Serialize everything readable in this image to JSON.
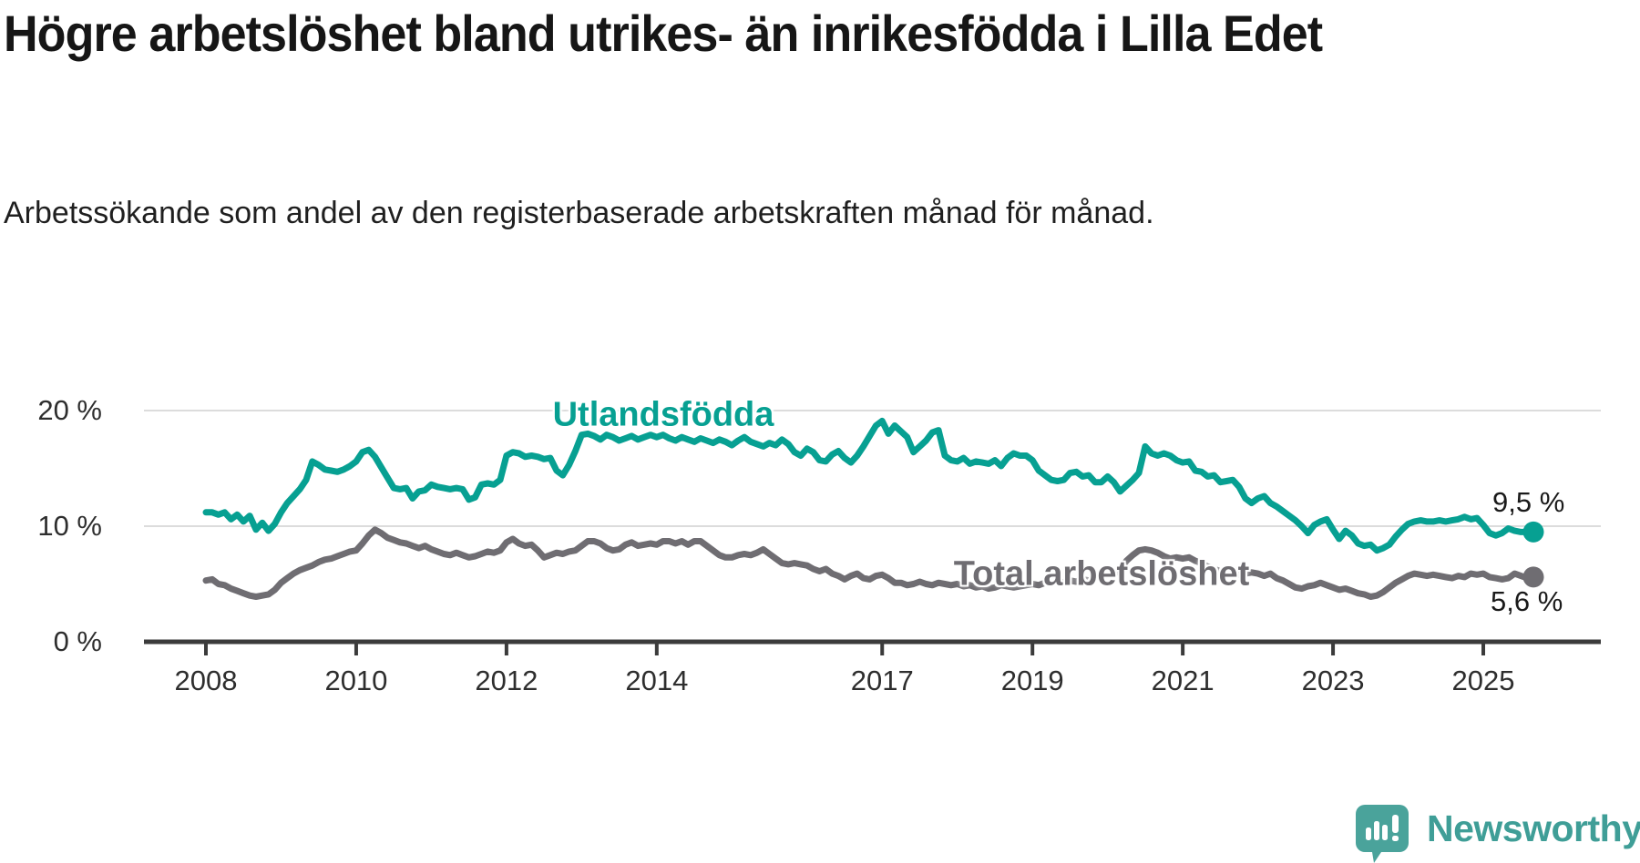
{
  "chart_data": {
    "type": "line",
    "title": "Högre arbetslöshet bland utrikes- än inrikesfödda i Lilla Edet",
    "subtitle": "Arbetssökande som andel av den registerbaserade arbetskraften månad för månad.",
    "x_axis": {
      "unit": "month",
      "start": "2008-01",
      "end": "2025-09",
      "tick_years": [
        2008,
        2010,
        2012,
        2014,
        2017,
        2019,
        2021,
        2023,
        2025
      ],
      "tick_labels": [
        "2008",
        "2010",
        "2012",
        "2014",
        "2017",
        "2019",
        "2021",
        "2023",
        "2025"
      ]
    },
    "y_axis": {
      "unit": "%",
      "ylim": [
        0,
        21.5
      ],
      "tick_values": [
        20,
        10,
        0
      ],
      "tick_labels": [
        "20 %",
        "10 %",
        "0 %"
      ]
    },
    "grid": true,
    "legend_position": "inline-labels",
    "series": [
      {
        "name": "Utlandsfödda",
        "color": "#07a092",
        "end_label": "9,5 %",
        "end_value": 9.5,
        "values": [
          11.2,
          11.2,
          11.0,
          11.2,
          10.6,
          11.0,
          10.4,
          10.9,
          9.7,
          10.3,
          9.6,
          10.2,
          11.2,
          12.0,
          12.6,
          13.2,
          14.0,
          15.6,
          15.3,
          14.9,
          14.8,
          14.7,
          14.9,
          15.2,
          15.6,
          16.4,
          16.6,
          16.0,
          15.1,
          14.2,
          13.3,
          13.2,
          13.3,
          12.4,
          13.0,
          13.1,
          13.6,
          13.4,
          13.3,
          13.2,
          13.3,
          13.2,
          12.3,
          12.5,
          13.6,
          13.7,
          13.6,
          14.0,
          16.1,
          16.4,
          16.3,
          16.0,
          16.1,
          16.0,
          15.8,
          15.9,
          14.8,
          14.4,
          15.3,
          16.5,
          17.9,
          18.0,
          17.8,
          17.5,
          17.9,
          17.7,
          17.4,
          17.6,
          17.8,
          17.5,
          17.7,
          17.9,
          17.7,
          17.9,
          17.6,
          17.4,
          17.7,
          17.5,
          17.3,
          17.6,
          17.4,
          17.2,
          17.5,
          17.3,
          17.0,
          17.4,
          17.7,
          17.3,
          17.1,
          16.9,
          17.2,
          17.0,
          17.5,
          17.1,
          16.4,
          16.1,
          16.7,
          16.4,
          15.7,
          15.6,
          16.2,
          16.5,
          15.9,
          15.5,
          16.1,
          16.9,
          17.8,
          18.7,
          19.1,
          18.0,
          18.7,
          18.2,
          17.7,
          16.4,
          16.9,
          17.4,
          18.1,
          18.3,
          16.1,
          15.7,
          15.6,
          15.9,
          15.4,
          15.6,
          15.5,
          15.4,
          15.7,
          15.2,
          15.9,
          16.3,
          16.1,
          16.1,
          15.7,
          14.8,
          14.4,
          14.0,
          13.9,
          14.0,
          14.6,
          14.7,
          14.3,
          14.4,
          13.8,
          13.8,
          14.3,
          13.8,
          13.0,
          13.5,
          14.0,
          14.6,
          16.9,
          16.3,
          16.1,
          16.3,
          16.1,
          15.7,
          15.5,
          15.6,
          14.8,
          14.7,
          14.3,
          14.4,
          13.8,
          13.9,
          14.0,
          13.4,
          12.4,
          12.0,
          12.4,
          12.6,
          12.0,
          11.7,
          11.3,
          10.9,
          10.5,
          10.0,
          9.4,
          10.1,
          10.4,
          10.6,
          9.7,
          8.9,
          9.6,
          9.2,
          8.5,
          8.3,
          8.4,
          7.9,
          8.1,
          8.4,
          9.1,
          9.7,
          10.2,
          10.4,
          10.5,
          10.4,
          10.4,
          10.5,
          10.4,
          10.5,
          10.6,
          10.8,
          10.6,
          10.7,
          10.1,
          9.4,
          9.2,
          9.4,
          9.8,
          9.6,
          9.5,
          9.5,
          9.5
        ]
      },
      {
        "name": "Total arbetslöshet",
        "color": "#6f6d72",
        "end_label": "5,6 %",
        "end_value": 5.6,
        "values": [
          5.3,
          5.4,
          5.0,
          4.9,
          4.6,
          4.4,
          4.2,
          4.0,
          3.9,
          4.0,
          4.1,
          4.5,
          5.1,
          5.5,
          5.9,
          6.2,
          6.4,
          6.6,
          6.9,
          7.1,
          7.2,
          7.4,
          7.6,
          7.8,
          7.9,
          8.5,
          9.2,
          9.7,
          9.4,
          9.0,
          8.8,
          8.6,
          8.5,
          8.3,
          8.1,
          8.3,
          8.0,
          7.8,
          7.6,
          7.5,
          7.7,
          7.5,
          7.3,
          7.4,
          7.6,
          7.8,
          7.7,
          7.9,
          8.6,
          8.9,
          8.5,
          8.3,
          8.4,
          7.9,
          7.3,
          7.5,
          7.7,
          7.6,
          7.8,
          7.9,
          8.3,
          8.7,
          8.7,
          8.5,
          8.1,
          7.9,
          8.0,
          8.4,
          8.6,
          8.3,
          8.4,
          8.5,
          8.4,
          8.7,
          8.7,
          8.5,
          8.7,
          8.4,
          8.7,
          8.7,
          8.3,
          7.9,
          7.5,
          7.3,
          7.3,
          7.5,
          7.6,
          7.5,
          7.7,
          8.0,
          7.6,
          7.2,
          6.8,
          6.7,
          6.8,
          6.7,
          6.6,
          6.3,
          6.1,
          6.3,
          5.9,
          5.7,
          5.4,
          5.7,
          5.9,
          5.5,
          5.4,
          5.7,
          5.8,
          5.5,
          5.1,
          5.1,
          4.9,
          5.0,
          5.2,
          5.0,
          4.9,
          5.1,
          5.0,
          4.9,
          5.0,
          4.8,
          4.9,
          4.7,
          4.8,
          4.6,
          4.7,
          4.9,
          4.8,
          4.7,
          4.8,
          4.9,
          5.0,
          4.9,
          5.1,
          5.0,
          5.2,
          5.1,
          5.3,
          5.2,
          5.4,
          5.3,
          5.5,
          5.6,
          5.8,
          5.9,
          6.2,
          7.0,
          7.5,
          7.9,
          8.0,
          7.9,
          7.7,
          7.4,
          7.2,
          7.3,
          7.2,
          7.3,
          7.0,
          6.8,
          6.5,
          6.3,
          6.1,
          6.0,
          5.9,
          5.8,
          5.9,
          6.0,
          5.9,
          5.7,
          5.9,
          5.5,
          5.3,
          5.0,
          4.7,
          4.6,
          4.8,
          4.9,
          5.1,
          4.9,
          4.7,
          4.5,
          4.6,
          4.4,
          4.2,
          4.1,
          3.9,
          4.0,
          4.3,
          4.7,
          5.1,
          5.4,
          5.7,
          5.9,
          5.8,
          5.7,
          5.8,
          5.7,
          5.6,
          5.5,
          5.7,
          5.6,
          5.9,
          5.8,
          5.9,
          5.6,
          5.5,
          5.4,
          5.5,
          5.9,
          5.7,
          5.5,
          5.6
        ]
      }
    ],
    "colors": {
      "accent_teal": "#07a092",
      "series_gray": "#6f6d72",
      "gridline": "#dcdcdc",
      "axis": "#3b3b3b",
      "text": "#161616",
      "logo_teal": "#3f9e97"
    }
  },
  "footer": {
    "logo_text": "Newsworthy"
  }
}
